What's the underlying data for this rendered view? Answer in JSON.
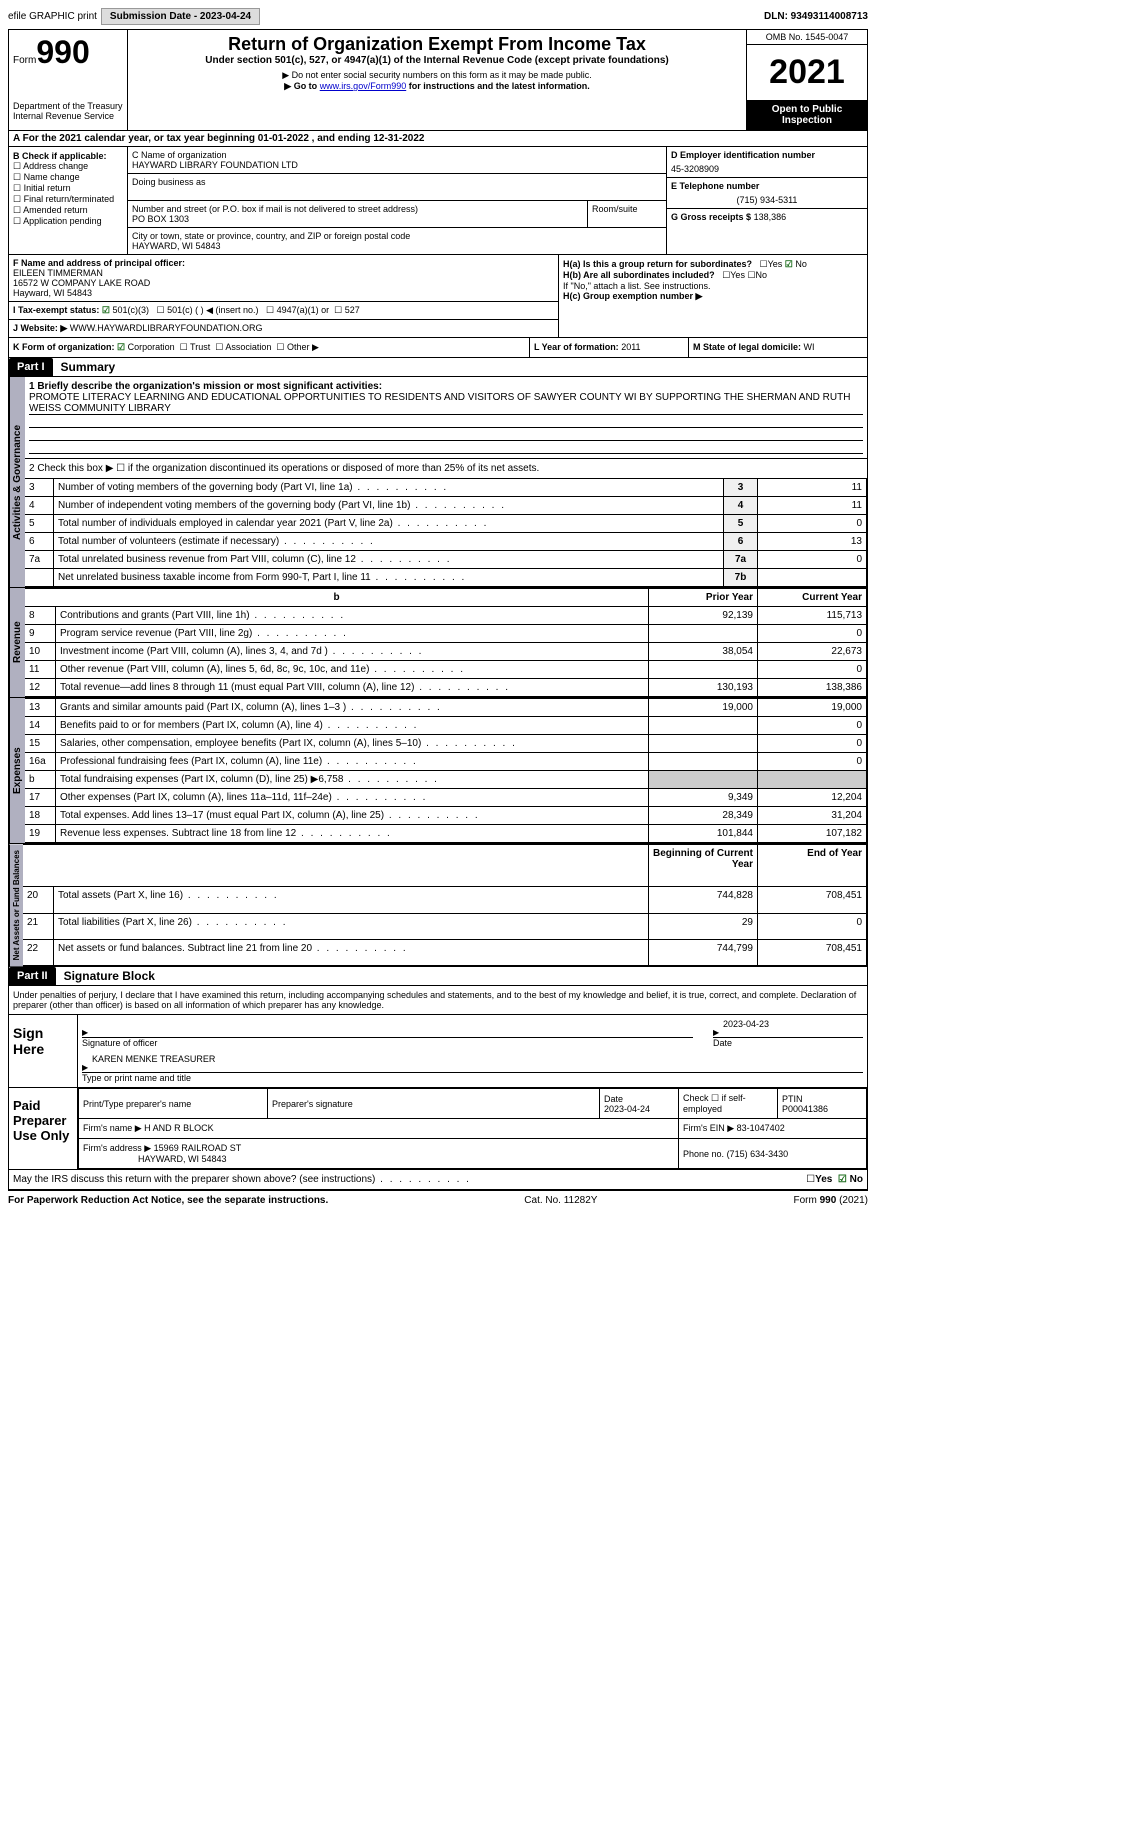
{
  "topbar": {
    "efile": "efile GRAPHIC print",
    "submission": "Submission Date - 2023-04-24",
    "dln": "DLN: 93493114008713"
  },
  "header": {
    "form_label": "Form",
    "form_num": "990",
    "dept": "Department of the Treasury\nInternal Revenue Service",
    "title": "Return of Organization Exempt From Income Tax",
    "subtitle": "Under section 501(c), 527, or 4947(a)(1) of the Internal Revenue Code (except private foundations)",
    "note1": "▶ Do not enter social security numbers on this form as it may be made public.",
    "note2_prefix": "▶ Go to ",
    "note2_link": "www.irs.gov/Form990",
    "note2_suffix": " for instructions and the latest information.",
    "omb": "OMB No. 1545-0047",
    "year": "2021",
    "inspection": "Open to Public Inspection"
  },
  "rowA": "A For the 2021 calendar year, or tax year beginning 01-01-2022   , and ending 12-31-2022",
  "colB": {
    "label": "B Check if applicable:",
    "items": [
      "Address change",
      "Name change",
      "Initial return",
      "Final return/terminated",
      "Amended return",
      "Application pending"
    ]
  },
  "colC": {
    "name_label": "C Name of organization",
    "name": "HAYWARD LIBRARY FOUNDATION LTD",
    "dba_label": "Doing business as",
    "addr_label": "Number and street (or P.O. box if mail is not delivered to street address)",
    "addr": "PO BOX 1303",
    "room_label": "Room/suite",
    "city_label": "City or town, state or province, country, and ZIP or foreign postal code",
    "city": "HAYWARD, WI  54843"
  },
  "colD": {
    "ein_label": "D Employer identification number",
    "ein": "45-3208909",
    "phone_label": "E Telephone number",
    "phone": "(715) 934-5311",
    "gross_label": "G Gross receipts $",
    "gross": "138,386"
  },
  "sectionF": {
    "label": "F Name and address of principal officer:",
    "name": "EILEEN TIMMERMAN",
    "addr1": "16572 W COMPANY LAKE ROAD",
    "addr2": "Hayward, WI  54843"
  },
  "sectionH": {
    "ha": "H(a)  Is this a group return for subordinates?",
    "hb": "H(b)  Are all subordinates included?",
    "hb_note": "If \"No,\" attach a list. See instructions.",
    "hc": "H(c)  Group exemption number ▶"
  },
  "lineI": "I   Tax-exempt status:",
  "lineI_opts": {
    "a": "501(c)(3)",
    "b": "501(c) (  ) ◀ (insert no.)",
    "c": "4947(a)(1) or",
    "d": "527"
  },
  "lineJ_label": "J   Website: ▶",
  "lineJ": "WWW.HAYWARDLIBRARYFOUNDATION.ORG",
  "rowK": {
    "label": "K Form of organization:",
    "opts": [
      "Corporation",
      "Trust",
      "Association",
      "Other ▶"
    ],
    "l_label": "L Year of formation:",
    "l_val": "2011",
    "m_label": "M State of legal domicile:",
    "m_val": "WI"
  },
  "part1": {
    "header": "Part I",
    "title": "Summary",
    "q1_label": "1  Briefly describe the organization's mission or most significant activities:",
    "q1_text": "PROMOTE LITERACY LEARNING AND EDUCATIONAL OPPORTUNITIES TO RESIDENTS AND VISITORS OF SAWYER COUNTY WI BY SUPPORTING THE SHERMAN AND RUTH WEISS COMMUNITY LIBRARY",
    "q2": "2   Check this box ▶ ☐ if the organization discontinued its operations or disposed of more than 25% of its net assets.",
    "governance_rows": [
      {
        "n": "3",
        "t": "Number of voting members of the governing body (Part VI, line 1a)",
        "box": "3",
        "v": "11"
      },
      {
        "n": "4",
        "t": "Number of independent voting members of the governing body (Part VI, line 1b)",
        "box": "4",
        "v": "11"
      },
      {
        "n": "5",
        "t": "Total number of individuals employed in calendar year 2021 (Part V, line 2a)",
        "box": "5",
        "v": "0"
      },
      {
        "n": "6",
        "t": "Total number of volunteers (estimate if necessary)",
        "box": "6",
        "v": "13"
      },
      {
        "n": "7a",
        "t": "Total unrelated business revenue from Part VIII, column (C), line 12",
        "box": "7a",
        "v": "0"
      },
      {
        "n": "",
        "t": "Net unrelated business taxable income from Form 990-T, Part I, line 11",
        "box": "7b",
        "v": ""
      }
    ],
    "col_headers": {
      "b": "b",
      "prior": "Prior Year",
      "current": "Current Year"
    },
    "revenue_rows": [
      {
        "n": "8",
        "t": "Contributions and grants (Part VIII, line 1h)",
        "p": "92,139",
        "c": "115,713"
      },
      {
        "n": "9",
        "t": "Program service revenue (Part VIII, line 2g)",
        "p": "",
        "c": "0"
      },
      {
        "n": "10",
        "t": "Investment income (Part VIII, column (A), lines 3, 4, and 7d )",
        "p": "38,054",
        "c": "22,673"
      },
      {
        "n": "11",
        "t": "Other revenue (Part VIII, column (A), lines 5, 6d, 8c, 9c, 10c, and 11e)",
        "p": "",
        "c": "0"
      },
      {
        "n": "12",
        "t": "Total revenue—add lines 8 through 11 (must equal Part VIII, column (A), line 12)",
        "p": "130,193",
        "c": "138,386"
      }
    ],
    "expense_rows": [
      {
        "n": "13",
        "t": "Grants and similar amounts paid (Part IX, column (A), lines 1–3 )",
        "p": "19,000",
        "c": "19,000"
      },
      {
        "n": "14",
        "t": "Benefits paid to or for members (Part IX, column (A), line 4)",
        "p": "",
        "c": "0"
      },
      {
        "n": "15",
        "t": "Salaries, other compensation, employee benefits (Part IX, column (A), lines 5–10)",
        "p": "",
        "c": "0"
      },
      {
        "n": "16a",
        "t": "Professional fundraising fees (Part IX, column (A), line 11e)",
        "p": "",
        "c": "0"
      },
      {
        "n": "b",
        "t": "Total fundraising expenses (Part IX, column (D), line 25) ▶6,758",
        "p": "SHADE",
        "c": "SHADE"
      },
      {
        "n": "17",
        "t": "Other expenses (Part IX, column (A), lines 11a–11d, 11f–24e)",
        "p": "9,349",
        "c": "12,204"
      },
      {
        "n": "18",
        "t": "Total expenses. Add lines 13–17 (must equal Part IX, column (A), line 25)",
        "p": "28,349",
        "c": "31,204"
      },
      {
        "n": "19",
        "t": "Revenue less expenses. Subtract line 18 from line 12",
        "p": "101,844",
        "c": "107,182"
      }
    ],
    "net_headers": {
      "begin": "Beginning of Current Year",
      "end": "End of Year"
    },
    "net_rows": [
      {
        "n": "20",
        "t": "Total assets (Part X, line 16)",
        "p": "744,828",
        "c": "708,451"
      },
      {
        "n": "21",
        "t": "Total liabilities (Part X, line 26)",
        "p": "29",
        "c": "0"
      },
      {
        "n": "22",
        "t": "Net assets or fund balances. Subtract line 21 from line 20",
        "p": "744,799",
        "c": "708,451"
      }
    ]
  },
  "vtabs": {
    "gov": "Activities & Governance",
    "rev": "Revenue",
    "exp": "Expenses",
    "net": "Net Assets or Fund Balances"
  },
  "part2": {
    "header": "Part II",
    "title": "Signature Block",
    "declaration": "Under penalties of perjury, I declare that I have examined this return, including accompanying schedules and statements, and to the best of my knowledge and belief, it is true, correct, and complete. Declaration of preparer (other than officer) is based on all information of which preparer has any knowledge.",
    "sign_here": "Sign Here",
    "sig_date": "2023-04-23",
    "sig_officer_label": "Signature of officer",
    "date_label": "Date",
    "typed_name": "KAREN MENKE  TREASURER",
    "typed_label": "Type or print name and title",
    "paid_label": "Paid Preparer Use Only",
    "prep_name_label": "Print/Type preparer's name",
    "prep_sig_label": "Preparer's signature",
    "prep_date_label": "Date",
    "prep_date": "2023-04-24",
    "prep_check": "Check ☐ if self-employed",
    "ptin_label": "PTIN",
    "ptin": "P00041386",
    "firm_name_label": "Firm's name      ▶",
    "firm_name": "H AND R BLOCK",
    "firm_ein_label": "Firm's EIN ▶",
    "firm_ein": "83-1047402",
    "firm_addr_label": "Firm's address ▶",
    "firm_addr1": "15969 RAILROAD ST",
    "firm_addr2": "HAYWARD, WI  54843",
    "firm_phone_label": "Phone no.",
    "firm_phone": "(715) 634-3430",
    "discuss": "May the IRS discuss this return with the preparer shown above? (see instructions)"
  },
  "footer": {
    "left": "For Paperwork Reduction Act Notice, see the separate instructions.",
    "mid": "Cat. No. 11282Y",
    "right": "Form 990 (2021)"
  }
}
